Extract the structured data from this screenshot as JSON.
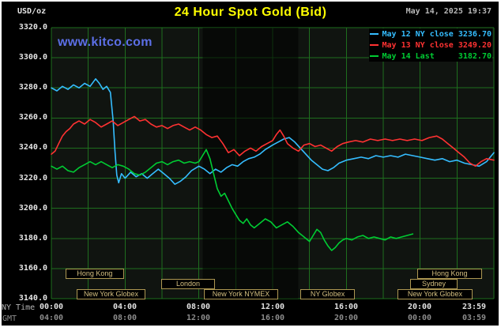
{
  "header": {
    "units_label": "USD/oz",
    "title": "24 Hour Spot Gold (Bid)",
    "datetime": "May 14, 2025 19:37"
  },
  "watermark": "www.kitco.com",
  "legend": [
    {
      "label": "May 12 NY close 3236.70",
      "color": "#35bdff"
    },
    {
      "label": "May 13 NY close 3249.20",
      "color": "#ff3232"
    },
    {
      "label": "May 14 Last     3182.70",
      "color": "#00cc33"
    }
  ],
  "colors": {
    "panel_bg": "#000000",
    "plot_bg": "#101410",
    "grid": "#1e6e1e",
    "band": "rgba(0,0,0,0.55)",
    "title": "#ffff00",
    "axis_text": "#e6e6e6",
    "secondary_text": "#8c8c8c",
    "session_border": "#ad9752",
    "session_text": "#d4bf80",
    "watermark": "#5c6fe6"
  },
  "y_axis": {
    "labels": [
      "3320.0",
      "3300.0",
      "3280.0",
      "3260.0",
      "3240.0",
      "3220.0",
      "3200.0",
      "3180.0",
      "3160.0",
      "3140.0"
    ]
  },
  "x_axis": {
    "ny_time": {
      "label": "NY Time",
      "ticks": [
        "00:00",
        "04:00",
        "08:00",
        "12:00",
        "16:00",
        "20:00",
        "23:59"
      ]
    },
    "gmt": {
      "label": "GMT",
      "ticks": [
        "04:00",
        "08:00",
        "12:00",
        "16:00",
        "20:00",
        "00:00",
        "03:59"
      ]
    }
  },
  "sessions": [
    {
      "label": "Hong Kong",
      "row": 0,
      "t0": 0.77,
      "t1": 3.94
    },
    {
      "label": "Hong Kong",
      "row": 0,
      "t0": 19.84,
      "t1": 23.36
    },
    {
      "label": "London",
      "row": 1,
      "t0": 5.96,
      "t1": 8.87
    },
    {
      "label": "Sydney",
      "row": 1,
      "t0": 19.46,
      "t1": 22.03
    },
    {
      "label": "New York Globex",
      "row": 2,
      "t0": 1.37,
      "t1": 5.1
    },
    {
      "label": "New York NYMEX",
      "row": 2,
      "t0": 8.27,
      "t1": 12.3
    },
    {
      "label": "NY Globex",
      "row": 2,
      "t0": 13.5,
      "t1": 16.46
    },
    {
      "label": "New York Globex",
      "row": 2,
      "t0": 18.77,
      "t1": 22.84
    }
  ],
  "chart_data": {
    "type": "line",
    "title": "24 Hour Spot Gold (Bid)",
    "ylabel": "USD/oz",
    "ylim": [
      3140,
      3320
    ],
    "xlim_hours": [
      0,
      24
    ],
    "y_tick_step": 20,
    "x_tick_step_hours": 2,
    "grid": true,
    "legend_position": "top-right",
    "shaded_band_hours": [
      8.2,
      13.4
    ],
    "series": [
      {
        "name": "May 12 NY close",
        "close_value": 3236.7,
        "color": "#35bdff",
        "points": [
          [
            0,
            3280
          ],
          [
            0.3,
            3278
          ],
          [
            0.6,
            3281
          ],
          [
            0.9,
            3279
          ],
          [
            1.2,
            3282
          ],
          [
            1.5,
            3280
          ],
          [
            1.8,
            3283
          ],
          [
            2.1,
            3281
          ],
          [
            2.4,
            3286
          ],
          [
            2.6,
            3283
          ],
          [
            2.8,
            3279
          ],
          [
            3.0,
            3281
          ],
          [
            3.2,
            3277
          ],
          [
            3.35,
            3258
          ],
          [
            3.45,
            3238
          ],
          [
            3.55,
            3222
          ],
          [
            3.65,
            3217
          ],
          [
            3.8,
            3223
          ],
          [
            4.0,
            3220
          ],
          [
            4.3,
            3224
          ],
          [
            4.6,
            3221
          ],
          [
            4.9,
            3223
          ],
          [
            5.2,
            3220
          ],
          [
            5.5,
            3223
          ],
          [
            5.8,
            3226
          ],
          [
            6.1,
            3223
          ],
          [
            6.4,
            3220
          ],
          [
            6.7,
            3216
          ],
          [
            7.0,
            3218
          ],
          [
            7.3,
            3221
          ],
          [
            7.6,
            3225
          ],
          [
            8.0,
            3228
          ],
          [
            8.3,
            3226
          ],
          [
            8.6,
            3223
          ],
          [
            8.9,
            3226
          ],
          [
            9.2,
            3224
          ],
          [
            9.5,
            3227
          ],
          [
            9.8,
            3229
          ],
          [
            10.1,
            3228
          ],
          [
            10.4,
            3231
          ],
          [
            10.7,
            3233
          ],
          [
            11.0,
            3234
          ],
          [
            11.3,
            3236
          ],
          [
            11.6,
            3239
          ],
          [
            12.0,
            3242
          ],
          [
            12.3,
            3244
          ],
          [
            12.6,
            3246
          ],
          [
            12.9,
            3247
          ],
          [
            13.2,
            3244
          ],
          [
            13.5,
            3240
          ],
          [
            13.8,
            3236
          ],
          [
            14.1,
            3232
          ],
          [
            14.4,
            3229
          ],
          [
            14.7,
            3226
          ],
          [
            15.0,
            3225
          ],
          [
            15.3,
            3227
          ],
          [
            15.6,
            3230
          ],
          [
            16.0,
            3232
          ],
          [
            16.4,
            3233
          ],
          [
            16.8,
            3234
          ],
          [
            17.2,
            3233
          ],
          [
            17.6,
            3235
          ],
          [
            18.0,
            3234
          ],
          [
            18.4,
            3235
          ],
          [
            18.8,
            3234
          ],
          [
            19.2,
            3236
          ],
          [
            19.6,
            3235
          ],
          [
            20.0,
            3234
          ],
          [
            20.4,
            3233
          ],
          [
            20.8,
            3232
          ],
          [
            21.2,
            3233
          ],
          [
            21.6,
            3231
          ],
          [
            22.0,
            3232
          ],
          [
            22.4,
            3230
          ],
          [
            22.8,
            3229
          ],
          [
            23.2,
            3228
          ],
          [
            23.6,
            3231
          ],
          [
            24,
            3237
          ]
        ]
      },
      {
        "name": "May 13 NY close",
        "close_value": 3249.2,
        "color": "#ff3232",
        "points": [
          [
            0,
            3236
          ],
          [
            0.2,
            3238
          ],
          [
            0.4,
            3243
          ],
          [
            0.6,
            3248
          ],
          [
            0.8,
            3251
          ],
          [
            1.0,
            3253
          ],
          [
            1.2,
            3256
          ],
          [
            1.5,
            3258
          ],
          [
            1.8,
            3256
          ],
          [
            2.1,
            3259
          ],
          [
            2.4,
            3257
          ],
          [
            2.7,
            3254
          ],
          [
            3.0,
            3256
          ],
          [
            3.3,
            3258
          ],
          [
            3.6,
            3255
          ],
          [
            3.9,
            3257
          ],
          [
            4.2,
            3259
          ],
          [
            4.5,
            3261
          ],
          [
            4.8,
            3258
          ],
          [
            5.1,
            3259
          ],
          [
            5.4,
            3256
          ],
          [
            5.7,
            3254
          ],
          [
            6.0,
            3255
          ],
          [
            6.3,
            3253
          ],
          [
            6.6,
            3255
          ],
          [
            6.9,
            3256
          ],
          [
            7.2,
            3254
          ],
          [
            7.5,
            3252
          ],
          [
            7.8,
            3254
          ],
          [
            8.1,
            3252
          ],
          [
            8.4,
            3249
          ],
          [
            8.7,
            3247
          ],
          [
            9.0,
            3248
          ],
          [
            9.3,
            3243
          ],
          [
            9.6,
            3237
          ],
          [
            9.9,
            3239
          ],
          [
            10.2,
            3235
          ],
          [
            10.5,
            3238
          ],
          [
            10.8,
            3240
          ],
          [
            11.1,
            3238
          ],
          [
            11.4,
            3241
          ],
          [
            11.7,
            3243
          ],
          [
            12.0,
            3245
          ],
          [
            12.2,
            3249
          ],
          [
            12.4,
            3252
          ],
          [
            12.6,
            3248
          ],
          [
            12.8,
            3243
          ],
          [
            13.1,
            3240
          ],
          [
            13.4,
            3238
          ],
          [
            13.7,
            3242
          ],
          [
            14.0,
            3243
          ],
          [
            14.3,
            3241
          ],
          [
            14.6,
            3242
          ],
          [
            14.9,
            3240
          ],
          [
            15.2,
            3238
          ],
          [
            15.5,
            3241
          ],
          [
            15.8,
            3243
          ],
          [
            16.1,
            3244
          ],
          [
            16.5,
            3245
          ],
          [
            16.9,
            3244
          ],
          [
            17.3,
            3246
          ],
          [
            17.7,
            3245
          ],
          [
            18.1,
            3246
          ],
          [
            18.5,
            3245
          ],
          [
            18.9,
            3246
          ],
          [
            19.3,
            3245
          ],
          [
            19.7,
            3246
          ],
          [
            20.1,
            3245
          ],
          [
            20.5,
            3247
          ],
          [
            20.9,
            3248
          ],
          [
            21.2,
            3246
          ],
          [
            21.5,
            3243
          ],
          [
            21.8,
            3240
          ],
          [
            22.1,
            3237
          ],
          [
            22.4,
            3234
          ],
          [
            22.7,
            3230
          ],
          [
            23.0,
            3228
          ],
          [
            23.3,
            3231
          ],
          [
            23.6,
            3233
          ],
          [
            24,
            3232
          ]
        ]
      },
      {
        "name": "May 14 Last",
        "close_value": 3182.7,
        "color": "#00cc33",
        "points": [
          [
            0,
            3228
          ],
          [
            0.3,
            3226
          ],
          [
            0.6,
            3228
          ],
          [
            0.9,
            3225
          ],
          [
            1.2,
            3224
          ],
          [
            1.5,
            3227
          ],
          [
            1.8,
            3229
          ],
          [
            2.1,
            3231
          ],
          [
            2.4,
            3229
          ],
          [
            2.7,
            3231
          ],
          [
            3.0,
            3229
          ],
          [
            3.3,
            3227
          ],
          [
            3.6,
            3229
          ],
          [
            3.9,
            3228
          ],
          [
            4.2,
            3226
          ],
          [
            4.5,
            3223
          ],
          [
            4.8,
            3222
          ],
          [
            5.1,
            3224
          ],
          [
            5.4,
            3227
          ],
          [
            5.7,
            3230
          ],
          [
            6.0,
            3231
          ],
          [
            6.3,
            3229
          ],
          [
            6.6,
            3231
          ],
          [
            6.9,
            3232
          ],
          [
            7.2,
            3230
          ],
          [
            7.5,
            3231
          ],
          [
            7.8,
            3230
          ],
          [
            8.0,
            3231
          ],
          [
            8.2,
            3235
          ],
          [
            8.4,
            3239
          ],
          [
            8.6,
            3233
          ],
          [
            8.8,
            3223
          ],
          [
            9.0,
            3213
          ],
          [
            9.2,
            3208
          ],
          [
            9.4,
            3210
          ],
          [
            9.6,
            3205
          ],
          [
            9.8,
            3200
          ],
          [
            10.0,
            3196
          ],
          [
            10.2,
            3192
          ],
          [
            10.4,
            3190
          ],
          [
            10.6,
            3193
          ],
          [
            10.8,
            3189
          ],
          [
            11.0,
            3187
          ],
          [
            11.3,
            3190
          ],
          [
            11.6,
            3193
          ],
          [
            11.9,
            3191
          ],
          [
            12.2,
            3187
          ],
          [
            12.5,
            3189
          ],
          [
            12.8,
            3191
          ],
          [
            13.1,
            3188
          ],
          [
            13.4,
            3184
          ],
          [
            13.7,
            3181
          ],
          [
            14.0,
            3178
          ],
          [
            14.2,
            3182
          ],
          [
            14.4,
            3186
          ],
          [
            14.6,
            3184
          ],
          [
            14.8,
            3179
          ],
          [
            15.0,
            3175
          ],
          [
            15.2,
            3172
          ],
          [
            15.4,
            3174
          ],
          [
            15.6,
            3177
          ],
          [
            15.8,
            3179
          ],
          [
            16.0,
            3180
          ],
          [
            16.3,
            3179
          ],
          [
            16.6,
            3181
          ],
          [
            16.9,
            3182
          ],
          [
            17.2,
            3180
          ],
          [
            17.5,
            3181
          ],
          [
            17.8,
            3180
          ],
          [
            18.1,
            3179
          ],
          [
            18.4,
            3181
          ],
          [
            18.7,
            3180
          ],
          [
            19.0,
            3181
          ],
          [
            19.3,
            3182
          ],
          [
            19.6,
            3183
          ]
        ]
      }
    ]
  }
}
